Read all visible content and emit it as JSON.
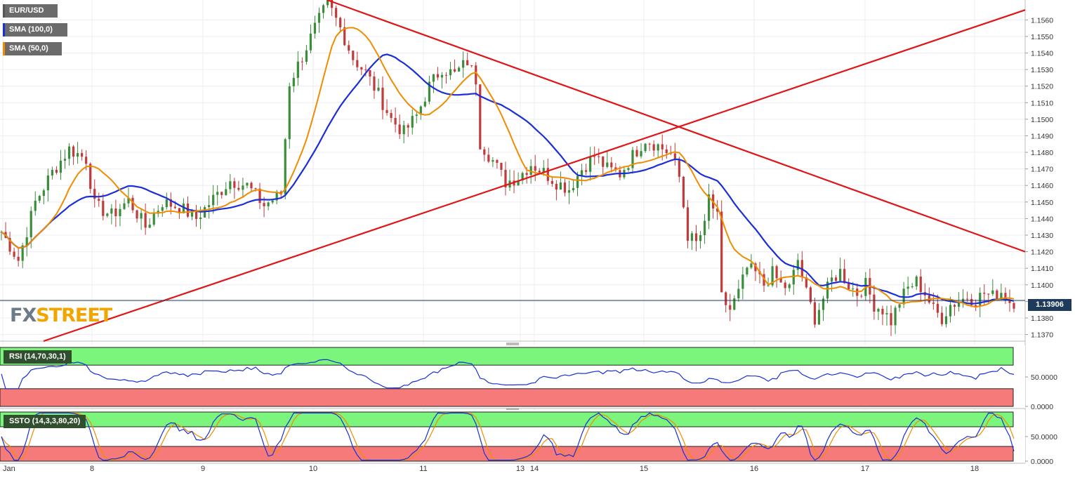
{
  "chart_data": {
    "type": "candlestick",
    "symbol": "EUR/USD",
    "legend": [
      {
        "label": "EUR/USD",
        "color": "#555555"
      },
      {
        "label": "SMA (100,0)",
        "color": "#1a2fd6"
      },
      {
        "label": "SMA (50,0)",
        "color": "#f08c00"
      }
    ],
    "last_price": "1.13906",
    "y_ticks": [
      "1.1370",
      "1.1380",
      "1.1390",
      "1.1400",
      "1.1410",
      "1.1420",
      "1.1430",
      "1.1440",
      "1.1450",
      "1.1460",
      "1.1470",
      "1.1480",
      "1.1490",
      "1.1500",
      "1.1510",
      "1.1520",
      "1.1530",
      "1.1540",
      "1.1550",
      "1.1560"
    ],
    "x_ticks": [
      "Jan",
      "8",
      "9",
      "10",
      "11",
      "13",
      "14",
      "15",
      "16",
      "17",
      "18"
    ],
    "price_anchors": [
      [
        0,
        1.1432
      ],
      [
        4,
        1.1415
      ],
      [
        8,
        1.145
      ],
      [
        12,
        1.1468
      ],
      [
        16,
        1.1482
      ],
      [
        20,
        1.1476
      ],
      [
        22,
        1.1448
      ],
      [
        26,
        1.1442
      ],
      [
        30,
        1.1451
      ],
      [
        34,
        1.1435
      ],
      [
        38,
        1.145
      ],
      [
        42,
        1.1447
      ],
      [
        46,
        1.144
      ],
      [
        50,
        1.1452
      ],
      [
        54,
        1.1463
      ],
      [
        58,
        1.146
      ],
      [
        62,
        1.1448
      ],
      [
        66,
        1.1455
      ],
      [
        68,
        1.1522
      ],
      [
        71,
        1.1538
      ],
      [
        74,
        1.1555
      ],
      [
        77,
        1.157
      ],
      [
        80,
        1.1555
      ],
      [
        83,
        1.1537
      ],
      [
        86,
        1.1528
      ],
      [
        89,
        1.1515
      ],
      [
        92,
        1.15
      ],
      [
        95,
        1.1492
      ],
      [
        98,
        1.1502
      ],
      [
        101,
        1.152
      ],
      [
        104,
        1.1531
      ],
      [
        107,
        1.1527
      ],
      [
        110,
        1.1535
      ],
      [
        112,
        1.1524
      ],
      [
        113,
        1.1486
      ],
      [
        116,
        1.1475
      ],
      [
        119,
        1.1462
      ],
      [
        122,
        1.1465
      ],
      [
        125,
        1.1473
      ],
      [
        128,
        1.1468
      ],
      [
        131,
        1.1462
      ],
      [
        134,
        1.1458
      ],
      [
        137,
        1.147
      ],
      [
        140,
        1.1478
      ],
      [
        143,
        1.147
      ],
      [
        146,
        1.1467
      ],
      [
        149,
        1.1478
      ],
      [
        152,
        1.1488
      ],
      [
        155,
        1.1484
      ],
      [
        158,
        1.1479
      ],
      [
        160,
        1.1465
      ],
      [
        162,
        1.143
      ],
      [
        164,
        1.1425
      ],
      [
        166,
        1.1435
      ],
      [
        167,
        1.1453
      ],
      [
        169,
        1.144
      ],
      [
        170,
        1.1392
      ],
      [
        172,
        1.1385
      ],
      [
        174,
        1.1395
      ],
      [
        176,
        1.141
      ],
      [
        178,
        1.1407
      ],
      [
        180,
        1.14
      ],
      [
        182,
        1.1407
      ],
      [
        184,
        1.14
      ],
      [
        186,
        1.1398
      ],
      [
        188,
        1.1415
      ],
      [
        190,
        1.1395
      ],
      [
        192,
        1.138
      ],
      [
        194,
        1.1392
      ],
      [
        196,
        1.1403
      ],
      [
        198,
        1.1408
      ],
      [
        200,
        1.14
      ],
      [
        202,
        1.1395
      ],
      [
        204,
        1.14
      ],
      [
        206,
        1.1388
      ],
      [
        208,
        1.1385
      ],
      [
        210,
        1.1378
      ],
      [
        212,
        1.139
      ],
      [
        214,
        1.1398
      ],
      [
        216,
        1.1402
      ],
      [
        218,
        1.1395
      ],
      [
        220,
        1.1385
      ],
      [
        222,
        1.138
      ],
      [
        224,
        1.1388
      ],
      [
        226,
        1.139
      ],
      [
        228,
        1.1393
      ],
      [
        230,
        1.1391
      ],
      [
        232,
        1.1395
      ],
      [
        234,
        1.1393
      ],
      [
        236,
        1.1396
      ],
      [
        238,
        1.139
      ]
    ],
    "indicators": [
      {
        "label": "RSI (14,70,30,1)",
        "y_ticks": [
          "0.0000",
          "50.0000"
        ]
      },
      {
        "label": "SSTO (14,3,3,80,20)",
        "y_ticks": [
          "0.0000",
          "50.0000"
        ]
      }
    ],
    "trendlines": "two red trendlines (falling resistance, rising support)"
  },
  "logo": {
    "fx": "FX",
    "street": "STREET"
  }
}
